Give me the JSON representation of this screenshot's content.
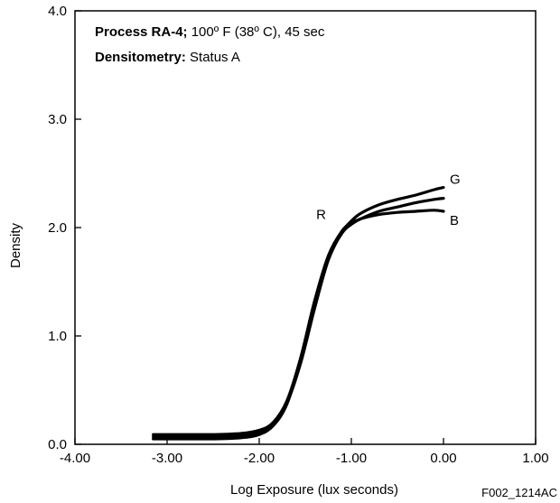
{
  "chart_data": {
    "type": "line",
    "xlabel": "Log Exposure (lux seconds)",
    "ylabel": "Density",
    "xlim": [
      -4.0,
      1.0
    ],
    "ylim": [
      0.0,
      4.0
    ],
    "xticks": [
      -4.0,
      -3.0,
      -2.0,
      -1.0,
      0.0,
      1.0
    ],
    "xtick_labels": [
      "-4.00",
      "-3.00",
      "-2.00",
      "-1.00",
      "0.00",
      "1.00"
    ],
    "yticks": [
      0.0,
      1.0,
      2.0,
      3.0,
      4.0
    ],
    "ytick_labels": [
      "0.0",
      "1.0",
      "2.0",
      "3.0",
      "4.0"
    ],
    "grid": false,
    "annotations": [
      {
        "bold": "Process RA-4;",
        "text": " 100º F (38º C), 45 sec"
      },
      {
        "bold": "Densitometry:",
        "text": " Status A"
      }
    ],
    "series": [
      {
        "name": "R",
        "x": [
          -3.15,
          -2.8,
          -2.5,
          -2.2,
          -2.0,
          -1.85,
          -1.7,
          -1.55,
          -1.4,
          -1.25,
          -1.1,
          -1.0,
          -0.9,
          -0.7,
          -0.5,
          -0.3,
          -0.1,
          0.0
        ],
        "y": [
          0.05,
          0.05,
          0.05,
          0.06,
          0.09,
          0.17,
          0.37,
          0.78,
          1.3,
          1.72,
          1.95,
          2.03,
          2.08,
          2.15,
          2.19,
          2.23,
          2.26,
          2.27
        ]
      },
      {
        "name": "G",
        "x": [
          -3.15,
          -2.8,
          -2.5,
          -2.2,
          -2.0,
          -1.85,
          -1.7,
          -1.55,
          -1.4,
          -1.25,
          -1.1,
          -1.0,
          -0.9,
          -0.7,
          -0.5,
          -0.3,
          -0.1,
          0.0
        ],
        "y": [
          0.07,
          0.07,
          0.07,
          0.08,
          0.11,
          0.18,
          0.38,
          0.75,
          1.25,
          1.7,
          1.96,
          2.06,
          2.13,
          2.21,
          2.26,
          2.3,
          2.35,
          2.37
        ]
      },
      {
        "name": "B",
        "x": [
          -3.15,
          -2.8,
          -2.5,
          -2.2,
          -2.0,
          -1.85,
          -1.7,
          -1.55,
          -1.4,
          -1.25,
          -1.1,
          -1.0,
          -0.9,
          -0.7,
          -0.5,
          -0.3,
          -0.1,
          0.0
        ],
        "y": [
          0.09,
          0.09,
          0.09,
          0.1,
          0.13,
          0.2,
          0.4,
          0.8,
          1.32,
          1.74,
          1.97,
          2.04,
          2.08,
          2.12,
          2.14,
          2.15,
          2.16,
          2.15
        ]
      }
    ],
    "figure_code": "F002_1214AC"
  }
}
